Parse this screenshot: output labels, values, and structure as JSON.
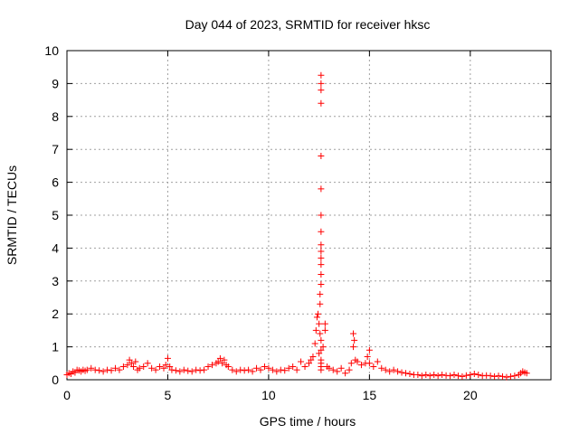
{
  "chart_data": {
    "type": "scatter",
    "title": "Day 044 of 2023, SRMTID for receiver hksc",
    "xlabel": "GPS time / hours",
    "ylabel": "SRMTID / TECUs",
    "xlim": [
      0,
      24
    ],
    "ylim": [
      0,
      10
    ],
    "xticks": [
      0,
      5,
      10,
      15,
      20
    ],
    "yticks": [
      0,
      1,
      2,
      3,
      4,
      5,
      6,
      7,
      8,
      9,
      10
    ],
    "grid": true,
    "marker": "+",
    "marker_color": "#ff0000",
    "series": [
      {
        "x": [
          0.0,
          0.1,
          0.2,
          0.3,
          0.4,
          0.5,
          0.6,
          0.7,
          0.8,
          0.9,
          1.0,
          1.2,
          1.4,
          1.6,
          1.8,
          2.0,
          2.2,
          2.4,
          2.6,
          2.8,
          3.0,
          3.1,
          3.2,
          3.3,
          3.4,
          3.5,
          3.6,
          3.8,
          4.0,
          4.2,
          4.4,
          4.6,
          4.8,
          4.9,
          5.0,
          5.1,
          5.2,
          5.4,
          5.6,
          5.8,
          6.0,
          6.2,
          6.4,
          6.6,
          6.8,
          7.0,
          7.2,
          7.4,
          7.5,
          7.6,
          7.7,
          7.8,
          7.9,
          8.0,
          8.2,
          8.4,
          8.6,
          8.8,
          9.0,
          9.2,
          9.4,
          9.6,
          9.8,
          10.0,
          10.2,
          10.4,
          10.6,
          10.8,
          11.0,
          11.2,
          11.4,
          11.6,
          11.8,
          12.0,
          12.1,
          12.2,
          12.3,
          12.35,
          12.4,
          12.45,
          12.5,
          12.5,
          12.55,
          12.55,
          12.55,
          12.6,
          12.6,
          12.6,
          12.6,
          12.6,
          12.6,
          12.6,
          12.6,
          12.6,
          12.6,
          12.6,
          12.6,
          12.6,
          12.6,
          12.6,
          12.6,
          12.6,
          12.6,
          12.6,
          12.6,
          12.7,
          12.8,
          12.8,
          12.9,
          13.0,
          13.2,
          13.4,
          13.6,
          13.8,
          14.0,
          14.1,
          14.2,
          14.2,
          14.25,
          14.3,
          14.4,
          14.6,
          14.8,
          14.9,
          15.0,
          15.0,
          15.2,
          15.4,
          15.6,
          15.8,
          16.0,
          16.2,
          16.4,
          16.6,
          16.8,
          17.0,
          17.2,
          17.4,
          17.6,
          17.8,
          18.0,
          18.2,
          18.4,
          18.6,
          18.8,
          19.0,
          19.2,
          19.4,
          19.6,
          19.8,
          20.0,
          20.2,
          20.4,
          20.6,
          20.8,
          21.0,
          21.2,
          21.4,
          21.6,
          21.8,
          22.0,
          22.2,
          22.4,
          22.5,
          22.6,
          22.7,
          22.8
        ],
        "y": [
          0.15,
          0.2,
          0.18,
          0.25,
          0.22,
          0.3,
          0.28,
          0.25,
          0.3,
          0.27,
          0.3,
          0.35,
          0.3,
          0.28,
          0.25,
          0.3,
          0.28,
          0.35,
          0.3,
          0.4,
          0.45,
          0.6,
          0.5,
          0.4,
          0.55,
          0.3,
          0.35,
          0.4,
          0.5,
          0.35,
          0.3,
          0.4,
          0.35,
          0.45,
          0.65,
          0.4,
          0.3,
          0.28,
          0.25,
          0.3,
          0.27,
          0.25,
          0.3,
          0.28,
          0.3,
          0.4,
          0.45,
          0.5,
          0.55,
          0.65,
          0.5,
          0.6,
          0.45,
          0.4,
          0.3,
          0.25,
          0.3,
          0.28,
          0.3,
          0.25,
          0.35,
          0.3,
          0.4,
          0.35,
          0.3,
          0.25,
          0.3,
          0.28,
          0.35,
          0.4,
          0.3,
          0.55,
          0.4,
          0.5,
          0.6,
          0.7,
          1.1,
          1.5,
          1.9,
          2.0,
          1.7,
          0.8,
          1.4,
          2.3,
          2.6,
          2.9,
          3.2,
          3.5,
          3.7,
          3.9,
          4.1,
          4.5,
          5.0,
          5.8,
          6.8,
          8.4,
          8.8,
          9.0,
          9.25,
          0.9,
          1.2,
          0.5,
          0.6,
          0.3,
          0.4,
          1.0,
          1.5,
          1.7,
          0.4,
          0.35,
          0.3,
          0.25,
          0.35,
          0.2,
          0.3,
          0.5,
          1.0,
          1.4,
          1.2,
          0.6,
          0.55,
          0.45,
          0.5,
          0.7,
          0.9,
          0.5,
          0.4,
          0.55,
          0.35,
          0.3,
          0.25,
          0.3,
          0.25,
          0.22,
          0.2,
          0.18,
          0.15,
          0.15,
          0.12,
          0.15,
          0.12,
          0.15,
          0.12,
          0.15,
          0.13,
          0.12,
          0.15,
          0.12,
          0.1,
          0.13,
          0.15,
          0.18,
          0.15,
          0.12,
          0.13,
          0.12,
          0.1,
          0.12,
          0.1,
          0.08,
          0.1,
          0.12,
          0.15,
          0.2,
          0.25,
          0.22,
          0.2
        ]
      }
    ]
  }
}
